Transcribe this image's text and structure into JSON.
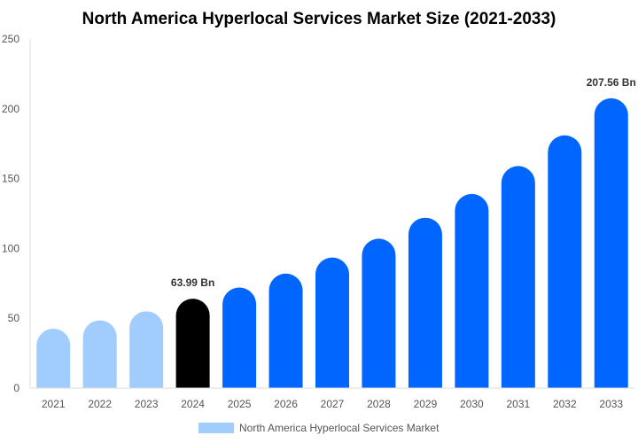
{
  "chart_data": {
    "type": "bar",
    "title": "North America Hyperlocal Services Market Size (2021-2033)",
    "categories": [
      "2021",
      "2022",
      "2023",
      "2024",
      "2025",
      "2026",
      "2027",
      "2028",
      "2029",
      "2030",
      "2031",
      "2032",
      "2033"
    ],
    "series": [
      {
        "name": "North America Hyperlocal Services Market",
        "values": [
          42.5,
          48.5,
          55,
          63.99,
          72,
          82,
          93.5,
          107,
          122,
          139,
          159,
          181,
          207.56
        ]
      }
    ],
    "data_labels": [
      {
        "category": "2024",
        "text": "63.99 Bn"
      },
      {
        "category": "2033",
        "text": "207.56 Bn"
      }
    ],
    "ylim": [
      0,
      250
    ],
    "yticks": [
      0,
      50,
      100,
      150,
      200,
      250
    ],
    "xlabel": "",
    "ylabel": "",
    "grid": false,
    "legend_position": "bottom",
    "colors": {
      "historical": "#a0cdfd",
      "current": "#000000",
      "forecast": "#0066ff"
    }
  }
}
